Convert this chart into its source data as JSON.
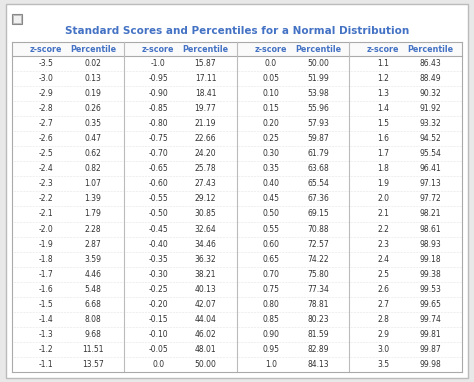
{
  "title": "Standard Scores and Percentiles for a Normal Distribution",
  "title_color": "#4472C4",
  "header_color": "#4472C4",
  "text_color": "#333333",
  "sep_color": "#CCCCCC",
  "bg_outer": "#E8E8E8",
  "bg_inner": "#FFFFFF",
  "columns": [
    "z-score",
    "Percentile",
    "z-score",
    "Percentile",
    "z-score",
    "Percentile",
    "z-score",
    "Percentile"
  ],
  "col1": [
    [
      "-3.5",
      "0.02"
    ],
    [
      "-3.0",
      "0.13"
    ],
    [
      "-2.9",
      "0.19"
    ],
    [
      "-2.8",
      "0.26"
    ],
    [
      "-2.7",
      "0.35"
    ],
    [
      "-2.6",
      "0.47"
    ],
    [
      "-2.5",
      "0.62"
    ],
    [
      "-2.4",
      "0.82"
    ],
    [
      "-2.3",
      "1.07"
    ],
    [
      "-2.2",
      "1.39"
    ],
    [
      "-2.1",
      "1.79"
    ],
    [
      "-2.0",
      "2.28"
    ],
    [
      "-1.9",
      "2.87"
    ],
    [
      "-1.8",
      "3.59"
    ],
    [
      "-1.7",
      "4.46"
    ],
    [
      "-1.6",
      "5.48"
    ],
    [
      "-1.5",
      "6.68"
    ],
    [
      "-1.4",
      "8.08"
    ],
    [
      "-1.3",
      "9.68"
    ],
    [
      "-1.2",
      "11.51"
    ],
    [
      "-1.1",
      "13.57"
    ]
  ],
  "col2": [
    [
      "-1.0",
      "15.87"
    ],
    [
      "-0.95",
      "17.11"
    ],
    [
      "-0.90",
      "18.41"
    ],
    [
      "-0.85",
      "19.77"
    ],
    [
      "-0.80",
      "21.19"
    ],
    [
      "-0.75",
      "22.66"
    ],
    [
      "-0.70",
      "24.20"
    ],
    [
      "-0.65",
      "25.78"
    ],
    [
      "-0.60",
      "27.43"
    ],
    [
      "-0.55",
      "29.12"
    ],
    [
      "-0.50",
      "30.85"
    ],
    [
      "-0.45",
      "32.64"
    ],
    [
      "-0.40",
      "34.46"
    ],
    [
      "-0.35",
      "36.32"
    ],
    [
      "-0.30",
      "38.21"
    ],
    [
      "-0.25",
      "40.13"
    ],
    [
      "-0.20",
      "42.07"
    ],
    [
      "-0.15",
      "44.04"
    ],
    [
      "-0.10",
      "46.02"
    ],
    [
      "-0.05",
      "48.01"
    ],
    [
      "0.0",
      "50.00"
    ]
  ],
  "col3": [
    [
      "0.0",
      "50.00"
    ],
    [
      "0.05",
      "51.99"
    ],
    [
      "0.10",
      "53.98"
    ],
    [
      "0.15",
      "55.96"
    ],
    [
      "0.20",
      "57.93"
    ],
    [
      "0.25",
      "59.87"
    ],
    [
      "0.30",
      "61.79"
    ],
    [
      "0.35",
      "63.68"
    ],
    [
      "0.40",
      "65.54"
    ],
    [
      "0.45",
      "67.36"
    ],
    [
      "0.50",
      "69.15"
    ],
    [
      "0.55",
      "70.88"
    ],
    [
      "0.60",
      "72.57"
    ],
    [
      "0.65",
      "74.22"
    ],
    [
      "0.70",
      "75.80"
    ],
    [
      "0.75",
      "77.34"
    ],
    [
      "0.80",
      "78.81"
    ],
    [
      "0.85",
      "80.23"
    ],
    [
      "0.90",
      "81.59"
    ],
    [
      "0.95",
      "82.89"
    ],
    [
      "1.0",
      "84.13"
    ]
  ],
  "col4": [
    [
      "1.1",
      "86.43"
    ],
    [
      "1.2",
      "88.49"
    ],
    [
      "1.3",
      "90.32"
    ],
    [
      "1.4",
      "91.92"
    ],
    [
      "1.5",
      "93.32"
    ],
    [
      "1.6",
      "94.52"
    ],
    [
      "1.7",
      "95.54"
    ],
    [
      "1.8",
      "96.41"
    ],
    [
      "1.9",
      "97.13"
    ],
    [
      "2.0",
      "97.72"
    ],
    [
      "2.1",
      "98.21"
    ],
    [
      "2.2",
      "98.61"
    ],
    [
      "2.3",
      "98.93"
    ],
    [
      "2.4",
      "99.18"
    ],
    [
      "2.5",
      "99.38"
    ],
    [
      "2.6",
      "99.53"
    ],
    [
      "2.7",
      "99.65"
    ],
    [
      "2.8",
      "99.74"
    ],
    [
      "2.9",
      "99.81"
    ],
    [
      "3.0",
      "99.87"
    ],
    [
      "3.5",
      "99.98"
    ]
  ]
}
